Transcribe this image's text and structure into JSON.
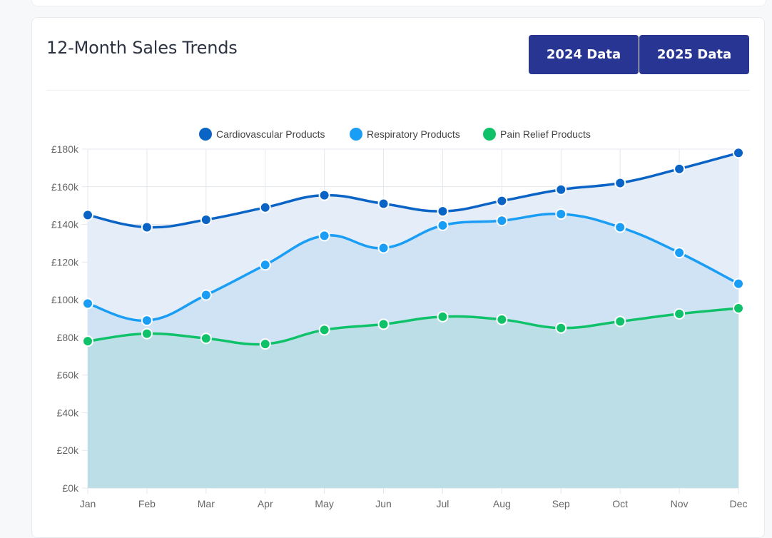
{
  "card": {
    "title": "12-Month Sales Trends",
    "buttons": [
      {
        "label": "2024 Data"
      },
      {
        "label": "2025 Data"
      }
    ]
  },
  "colors": {
    "button_bg": "#283593",
    "cardio": "#0a64c6",
    "respiratory": "#1a9df5",
    "pain": "#0fc26a",
    "area_top": "#e5eef8",
    "area_mid": "#cfe3f5",
    "area_low": "#bcdfe7",
    "grid": "#e4e7ec"
  },
  "chart_data": {
    "type": "area",
    "categories": [
      "Jan",
      "Feb",
      "Mar",
      "Apr",
      "May",
      "Jun",
      "Jul",
      "Aug",
      "Sep",
      "Oct",
      "Nov",
      "Dec"
    ],
    "ylim": [
      0,
      180000
    ],
    "y_ticks": [
      0,
      20000,
      40000,
      60000,
      80000,
      100000,
      120000,
      140000,
      160000,
      180000
    ],
    "y_tick_labels": [
      "£0k",
      "£20k",
      "£40k",
      "£60k",
      "£80k",
      "£100k",
      "£120k",
      "£140k",
      "£160k",
      "£180k"
    ],
    "grid": true,
    "legend_position": "top-center",
    "series": [
      {
        "name": "Cardiovascular Products",
        "color_key": "cardio",
        "values": [
          145000,
          138500,
          142500,
          149000,
          155500,
          151000,
          147000,
          152500,
          158500,
          162000,
          169500,
          178000
        ]
      },
      {
        "name": "Respiratory Products",
        "color_key": "respiratory",
        "values": [
          98000,
          89000,
          102500,
          118500,
          134000,
          127500,
          139500,
          142000,
          145500,
          138500,
          125000,
          108500
        ]
      },
      {
        "name": "Pain Relief Products",
        "color_key": "pain",
        "values": [
          78000,
          82000,
          79500,
          76500,
          84000,
          87000,
          91000,
          89500,
          85000,
          88500,
          92500,
          95500
        ]
      }
    ]
  }
}
